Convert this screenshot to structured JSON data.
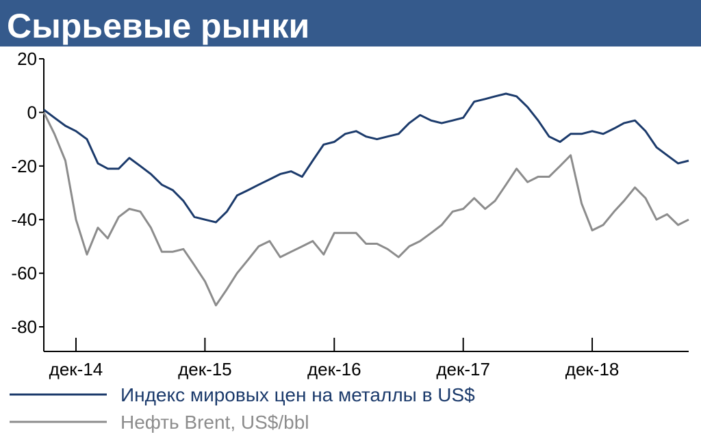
{
  "header": {
    "title": "Сырьевые рынки"
  },
  "colors": {
    "header_bg": "#355a8c",
    "header_text": "#ffffff",
    "metals": "#1b3a6b",
    "brent": "#8c8c8c"
  },
  "chart_data": {
    "type": "line",
    "title": "Сырьевые рынки",
    "ylim": [
      -80,
      20
    ],
    "y_ticks": [
      20,
      0,
      -20,
      -40,
      -60,
      -80
    ],
    "y_tick_labels": [
      "20",
      "0",
      "-20",
      "-40",
      "-60",
      "-80"
    ],
    "x_ticks": [
      "2014-12-01",
      "2015-12-01",
      "2016-12-01",
      "2017-12-01",
      "2018-12-01"
    ],
    "x_tick_labels": [
      "дек-14",
      "дек-15",
      "дек-16",
      "дек-17",
      "дек-18"
    ],
    "xlim": [
      "2014-09-01",
      "2019-08-31"
    ],
    "grid": false,
    "legend_position": "bottom-left",
    "series": [
      {
        "name": "Индекс мировых цен на металлы в US$",
        "color": "#1b3a6b",
        "points": [
          [
            "2014-09-01",
            1
          ],
          [
            "2014-10-01",
            -2
          ],
          [
            "2014-11-01",
            -5
          ],
          [
            "2014-12-01",
            -7
          ],
          [
            "2015-01-01",
            -10
          ],
          [
            "2015-02-01",
            -19
          ],
          [
            "2015-03-01",
            -21
          ],
          [
            "2015-04-01",
            -21
          ],
          [
            "2015-05-01",
            -17
          ],
          [
            "2015-06-01",
            -20
          ],
          [
            "2015-07-01",
            -23
          ],
          [
            "2015-08-01",
            -27
          ],
          [
            "2015-09-01",
            -29
          ],
          [
            "2015-10-01",
            -33
          ],
          [
            "2015-11-01",
            -39
          ],
          [
            "2015-12-01",
            -40
          ],
          [
            "2016-01-01",
            -41
          ],
          [
            "2016-02-01",
            -37
          ],
          [
            "2016-03-01",
            -31
          ],
          [
            "2016-04-01",
            -29
          ],
          [
            "2016-05-01",
            -27
          ],
          [
            "2016-06-01",
            -25
          ],
          [
            "2016-07-01",
            -23
          ],
          [
            "2016-08-01",
            -22
          ],
          [
            "2016-09-01",
            -24
          ],
          [
            "2016-10-01",
            -18
          ],
          [
            "2016-11-01",
            -12
          ],
          [
            "2016-12-01",
            -11
          ],
          [
            "2017-01-01",
            -8
          ],
          [
            "2017-02-01",
            -7
          ],
          [
            "2017-03-01",
            -9
          ],
          [
            "2017-04-01",
            -10
          ],
          [
            "2017-05-01",
            -9
          ],
          [
            "2017-06-01",
            -8
          ],
          [
            "2017-07-01",
            -4
          ],
          [
            "2017-08-01",
            -1
          ],
          [
            "2017-09-01",
            -3
          ],
          [
            "2017-10-01",
            -4
          ],
          [
            "2017-11-01",
            -3
          ],
          [
            "2017-12-01",
            -2
          ],
          [
            "2018-01-01",
            4
          ],
          [
            "2018-02-01",
            5
          ],
          [
            "2018-03-01",
            6
          ],
          [
            "2018-04-01",
            7
          ],
          [
            "2018-05-01",
            6
          ],
          [
            "2018-06-01",
            2
          ],
          [
            "2018-07-01",
            -3
          ],
          [
            "2018-08-01",
            -9
          ],
          [
            "2018-09-01",
            -11
          ],
          [
            "2018-10-01",
            -8
          ],
          [
            "2018-11-01",
            -8
          ],
          [
            "2018-12-01",
            -7
          ],
          [
            "2019-01-01",
            -8
          ],
          [
            "2019-02-01",
            -6
          ],
          [
            "2019-03-01",
            -4
          ],
          [
            "2019-04-01",
            -3
          ],
          [
            "2019-05-01",
            -7
          ],
          [
            "2019-06-01",
            -13
          ],
          [
            "2019-07-01",
            -16
          ],
          [
            "2019-08-01",
            -19
          ],
          [
            "2019-08-31",
            -18
          ]
        ]
      },
      {
        "name": "Нефть Brent, US$/bbl",
        "color": "#8c8c8c",
        "points": [
          [
            "2014-09-01",
            0
          ],
          [
            "2014-10-01",
            -8
          ],
          [
            "2014-11-01",
            -18
          ],
          [
            "2014-12-01",
            -40
          ],
          [
            "2015-01-01",
            -53
          ],
          [
            "2015-02-01",
            -43
          ],
          [
            "2015-03-01",
            -47
          ],
          [
            "2015-04-01",
            -39
          ],
          [
            "2015-05-01",
            -36
          ],
          [
            "2015-06-01",
            -37
          ],
          [
            "2015-07-01",
            -43
          ],
          [
            "2015-08-01",
            -52
          ],
          [
            "2015-09-01",
            -52
          ],
          [
            "2015-10-01",
            -51
          ],
          [
            "2015-11-01",
            -57
          ],
          [
            "2015-12-01",
            -63
          ],
          [
            "2016-01-01",
            -72
          ],
          [
            "2016-02-01",
            -66
          ],
          [
            "2016-03-01",
            -60
          ],
          [
            "2016-04-01",
            -55
          ],
          [
            "2016-05-01",
            -50
          ],
          [
            "2016-06-01",
            -48
          ],
          [
            "2016-07-01",
            -54
          ],
          [
            "2016-08-01",
            -52
          ],
          [
            "2016-09-01",
            -50
          ],
          [
            "2016-10-01",
            -48
          ],
          [
            "2016-11-01",
            -53
          ],
          [
            "2016-12-01",
            -45
          ],
          [
            "2017-01-01",
            -45
          ],
          [
            "2017-02-01",
            -45
          ],
          [
            "2017-03-01",
            -49
          ],
          [
            "2017-04-01",
            -49
          ],
          [
            "2017-05-01",
            -51
          ],
          [
            "2017-06-01",
            -54
          ],
          [
            "2017-07-01",
            -50
          ],
          [
            "2017-08-01",
            -48
          ],
          [
            "2017-09-01",
            -45
          ],
          [
            "2017-10-01",
            -42
          ],
          [
            "2017-11-01",
            -37
          ],
          [
            "2017-12-01",
            -36
          ],
          [
            "2018-01-01",
            -32
          ],
          [
            "2018-02-01",
            -36
          ],
          [
            "2018-03-01",
            -33
          ],
          [
            "2018-04-01",
            -27
          ],
          [
            "2018-05-01",
            -21
          ],
          [
            "2018-06-01",
            -26
          ],
          [
            "2018-07-01",
            -24
          ],
          [
            "2018-08-01",
            -24
          ],
          [
            "2018-09-01",
            -20
          ],
          [
            "2018-10-01",
            -16
          ],
          [
            "2018-11-01",
            -34
          ],
          [
            "2018-12-01",
            -44
          ],
          [
            "2019-01-01",
            -42
          ],
          [
            "2019-02-01",
            -37
          ],
          [
            "2019-03-01",
            -33
          ],
          [
            "2019-04-01",
            -28
          ],
          [
            "2019-05-01",
            -32
          ],
          [
            "2019-06-01",
            -40
          ],
          [
            "2019-07-01",
            -38
          ],
          [
            "2019-08-01",
            -42
          ],
          [
            "2019-08-31",
            -40
          ]
        ]
      }
    ]
  }
}
